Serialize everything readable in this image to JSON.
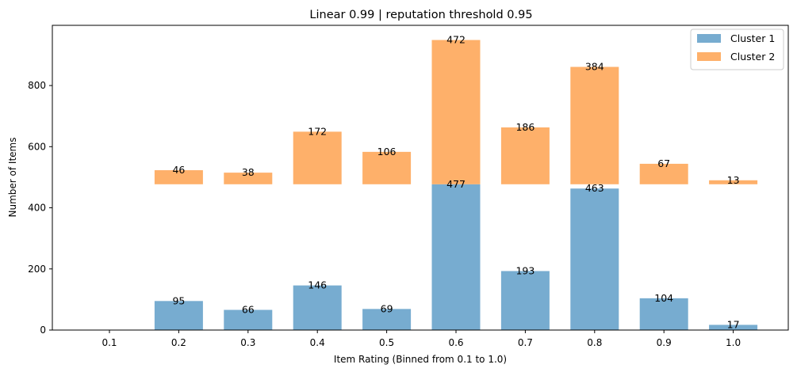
{
  "chart_data": {
    "type": "bar",
    "stacked_offset_series": true,
    "title": "Linear 0.99 | reputation threshold 0.95",
    "xlabel": "Item Rating (Binned from 0.1 to 1.0)",
    "ylabel": "Number of Items",
    "categories": [
      "0.1",
      "0.2",
      "0.3",
      "0.4",
      "0.5",
      "0.6",
      "0.7",
      "0.8",
      "0.9",
      "1.0"
    ],
    "ylim": [
      0,
      997
    ],
    "yticks": [
      "0",
      "200",
      "400",
      "600",
      "800"
    ],
    "ytick_values": [
      0,
      200,
      400,
      600,
      800
    ],
    "cluster2_base": 477,
    "series": [
      {
        "name": "Cluster 1",
        "color": "#77acd0",
        "values": [
          0,
          95,
          66,
          146,
          69,
          477,
          193,
          463,
          104,
          17
        ],
        "labels": [
          "",
          "95",
          "66",
          "146",
          "69",
          "477",
          "193",
          "463",
          "104",
          "17"
        ]
      },
      {
        "name": "Cluster 2",
        "color": "#feb06a",
        "values": [
          0,
          46,
          38,
          172,
          106,
          472,
          186,
          384,
          67,
          13
        ],
        "labels": [
          "",
          "46",
          "38",
          "172",
          "106",
          "472",
          "186",
          "384",
          "67",
          "13"
        ]
      }
    ],
    "legend_position": "top-right"
  }
}
